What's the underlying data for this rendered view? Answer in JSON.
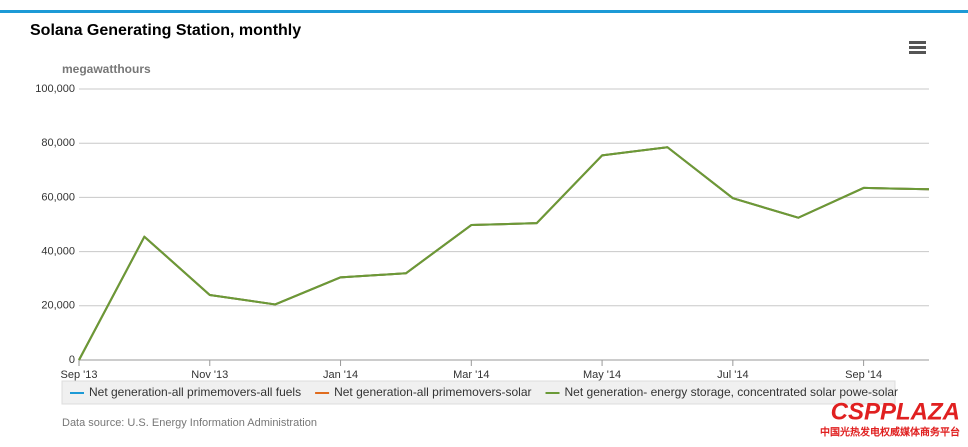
{
  "chart_data": {
    "type": "line",
    "title": "Solana Generating Station, monthly",
    "y_label": "megawatthours",
    "categories": [
      "Sep '13",
      null,
      "Nov '13",
      null,
      "Jan '14",
      null,
      "Mar '14",
      null,
      "May '14",
      null,
      "Jul '14",
      null,
      "Sep '14",
      null
    ],
    "series": [
      {
        "name": "Net generation-all primemovers-all fuels",
        "color": "#1d9ad6",
        "values": [
          0,
          45500,
          24000,
          20500,
          30500,
          32000,
          49800,
          50500,
          75500,
          78500,
          59700,
          52500,
          63500,
          63000
        ]
      },
      {
        "name": "Net generation-all primemovers-solar",
        "color": "#e06c1e",
        "values": [
          0,
          45500,
          24000,
          20500,
          30500,
          32000,
          49800,
          50500,
          75500,
          78500,
          59700,
          52500,
          63500,
          63000
        ]
      },
      {
        "name": "Net generation- energy storage, concentrated solar powe-solar",
        "color": "#6a9a37",
        "values": [
          0,
          45500,
          24000,
          20500,
          30500,
          32000,
          49800,
          50500,
          75500,
          78500,
          59700,
          52500,
          63500,
          63000
        ]
      }
    ],
    "ylim": [
      0,
      100000
    ],
    "yticks": [
      0,
      {
        "value": 20000,
        "label": "20,000"
      },
      {
        "value": 40000,
        "label": "40,000"
      },
      {
        "value": 60000,
        "label": "60,000"
      },
      {
        "value": 80000,
        "label": "80,000"
      },
      {
        "value": 100000,
        "label": "100,000"
      }
    ],
    "grid": true,
    "legend": "bottom",
    "source": "Data source: U.S. Energy Information Administration",
    "watermark": "CSPPLAZA",
    "watermark_subtitle": "中国光热发电权威媒体商务平台"
  }
}
